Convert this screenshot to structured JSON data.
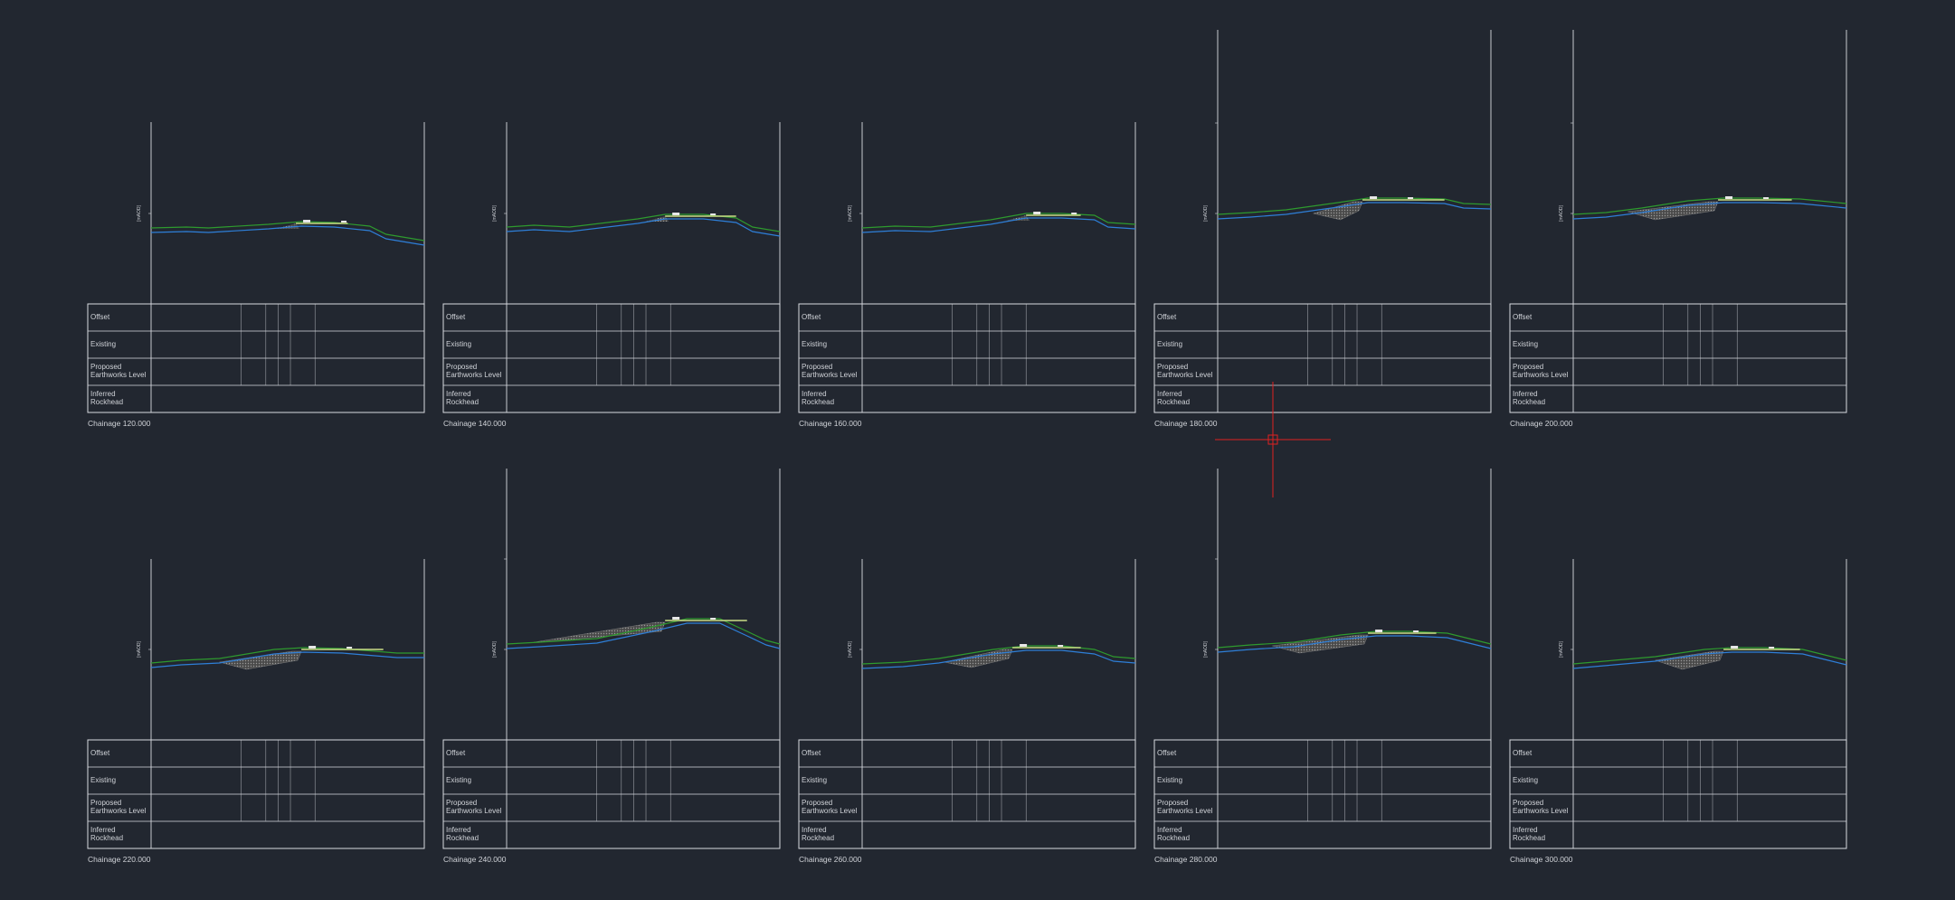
{
  "units_label": "[mAOD]",
  "row_labels": {
    "offset": "Offset",
    "existing": "Existing",
    "proposed": [
      "Proposed",
      "Earthworks Level"
    ],
    "inferred": [
      "Inferred",
      "Rockhead"
    ]
  },
  "sections": [
    {
      "chainage": "Chainage 120.000"
    },
    {
      "chainage": "Chainage 140.000"
    },
    {
      "chainage": "Chainage 160.000"
    },
    {
      "chainage": "Chainage 180.000"
    },
    {
      "chainage": "Chainage 200.000"
    },
    {
      "chainage": "Chainage 220.000"
    },
    {
      "chainage": "Chainage 240.000"
    },
    {
      "chainage": "Chainage 260.000"
    },
    {
      "chainage": "Chainage 280.000"
    },
    {
      "chainage": "Chainage 300.000"
    }
  ],
  "colors": {
    "background": "#222730",
    "frame": "#d8dbe0",
    "existing_ground": "#2e9a2e",
    "inferred_rockhead": "#2e7fd8",
    "proposed": "#c9dd86",
    "fill_hatch": "#6e6e6e",
    "crosshair": "#e02020"
  }
}
